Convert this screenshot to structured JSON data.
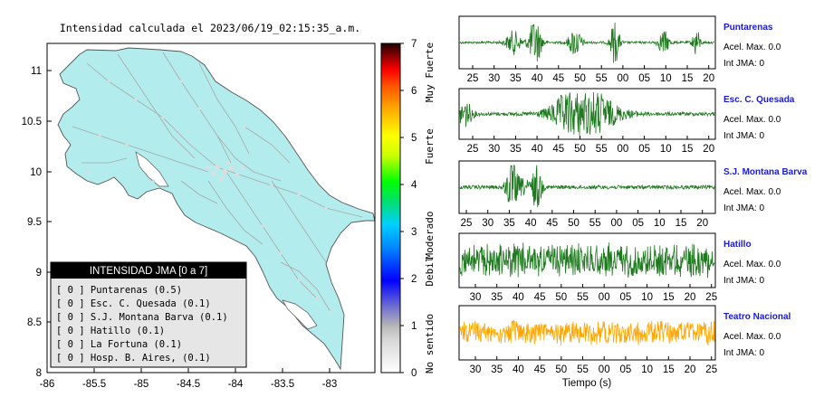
{
  "map": {
    "title": "Intensidad calculada el 2023/06/19_02:15:35_a.m.",
    "x_ticks": [
      "-86",
      "-85.5",
      "-85",
      "-84.5",
      "-84",
      "-83.5",
      "-83"
    ],
    "y_ticks": [
      "11",
      "10.5",
      "10",
      "9.5",
      "9",
      "8.5",
      "8"
    ],
    "land_color": "#b2ecec"
  },
  "colorbar": {
    "ticks": [
      "7",
      "6",
      "5",
      "4",
      "3",
      "2",
      "1",
      "0"
    ],
    "labels": [
      "Muy Fuerte",
      "Fuerte",
      "Moderado",
      "Debil",
      "No sentido"
    ]
  },
  "legend": {
    "title": "INTENSIDAD JMA [0 a 7]",
    "items": [
      "[ 0 ]  Puntarenas (0.5)",
      "[ 0 ]  Esc. C. Quesada (0.1)",
      "[ 0 ]  S.J. Montana Barva (0.1)",
      "[ 0 ]  Hatillo (0.1)",
      "[ 0 ]  La Fortuna (0.1)",
      "[ 0 ]  Hosp. B. Aires, (0.1)"
    ]
  },
  "stations": [
    {
      "name": "Puntarenas",
      "acel": "Acel. Max. 0.0",
      "jma": "Int JMA: 0",
      "color": "#1f7a1f",
      "ticks": [
        "25",
        "30",
        "35",
        "40",
        "45",
        "50",
        "55",
        "00",
        "05",
        "10",
        "15",
        "20"
      ]
    },
    {
      "name": "Esc. C. Quesada",
      "acel": "Acel. Max. 0.0",
      "jma": "Int JMA: 0",
      "color": "#1f7a1f",
      "ticks": [
        "25",
        "30",
        "35",
        "40",
        "45",
        "50",
        "55",
        "00",
        "05",
        "10",
        "15",
        "20"
      ]
    },
    {
      "name": "S.J. Montana Barva",
      "acel": "Acel. Max. 0.0",
      "jma": "Int JMA: 0",
      "color": "#1f7a1f",
      "ticks": [
        "25",
        "30",
        "35",
        "40",
        "45",
        "50",
        "55",
        "00",
        "05",
        "10",
        "15",
        "20"
      ]
    },
    {
      "name": "Hatillo",
      "acel": "Acel. Max. 0.0",
      "jma": "Int JMA: 0",
      "color": "#1f7a1f",
      "ticks": [
        "30",
        "35",
        "40",
        "45",
        "50",
        "55",
        "00",
        "05",
        "10",
        "15",
        "20",
        "25"
      ]
    },
    {
      "name": "Teatro Nacional",
      "acel": "Acel. Max. 0.0",
      "jma": "Int JMA: 0",
      "color": "#ffa500",
      "ticks": [
        "30",
        "35",
        "40",
        "45",
        "50",
        "55",
        "00",
        "05",
        "10",
        "15",
        "20",
        "25"
      ]
    }
  ],
  "time_label": "Tiempo (s)",
  "chart_data": [
    {
      "type": "map",
      "title": "Intensidad calculada el 2023/06/19_02:15:35_a.m.",
      "xlim": [
        -86,
        -82.5
      ],
      "ylim": [
        8,
        11.3
      ],
      "colorbar_range": [
        0,
        7
      ]
    },
    {
      "type": "line",
      "xlabel": "Tiempo (s)",
      "series": [
        {
          "name": "Puntarenas",
          "acel_max": 0.0,
          "int_jma": 0
        },
        {
          "name": "Esc. C. Quesada",
          "acel_max": 0.0,
          "int_jma": 0
        },
        {
          "name": "S.J. Montana Barva",
          "acel_max": 0.0,
          "int_jma": 0
        },
        {
          "name": "Hatillo",
          "acel_max": 0.0,
          "int_jma": 0
        },
        {
          "name": "Teatro Nacional",
          "acel_max": 0.0,
          "int_jma": 0
        }
      ]
    }
  ]
}
